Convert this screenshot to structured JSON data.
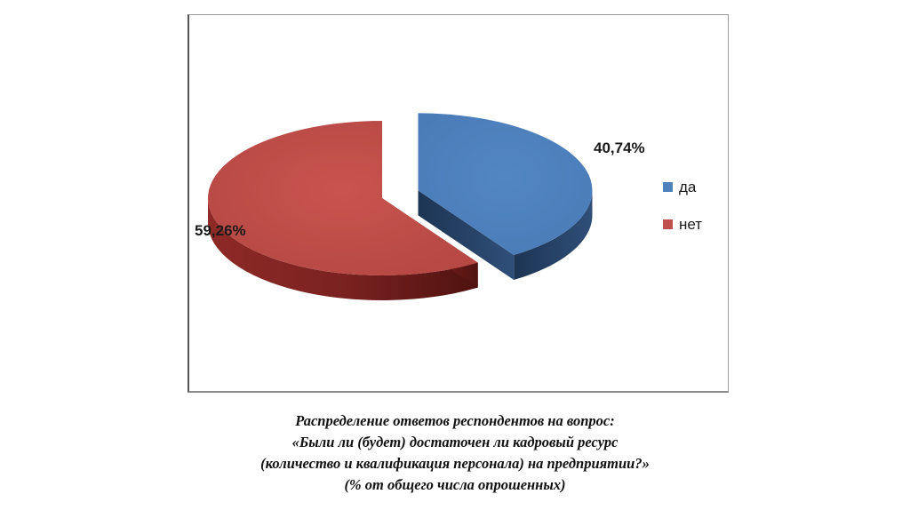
{
  "chart_data": {
    "type": "pie",
    "style": "3d-exploded",
    "slices": [
      {
        "label": "да",
        "value": 40.74,
        "display": "40,74%",
        "color": "#4f81bd",
        "side_color": "#243e60"
      },
      {
        "label": "нет",
        "value": 59.26,
        "display": "59,26%",
        "color": "#c0504d",
        "side_color": "#6e1d1b"
      }
    ],
    "legend": {
      "placement": "right",
      "items": [
        {
          "label": "да",
          "color": "#4f81bd"
        },
        {
          "label": "нет",
          "color": "#c0504d"
        }
      ]
    }
  },
  "caption": {
    "lines": [
      "Распределение ответов респондентов на вопрос:",
      "«Были ли (будет) достаточен ли кадровый ресурс",
      "(количество и квалификация персонала) на предприятии?»",
      "(% от общего числа опрошенных)"
    ]
  }
}
